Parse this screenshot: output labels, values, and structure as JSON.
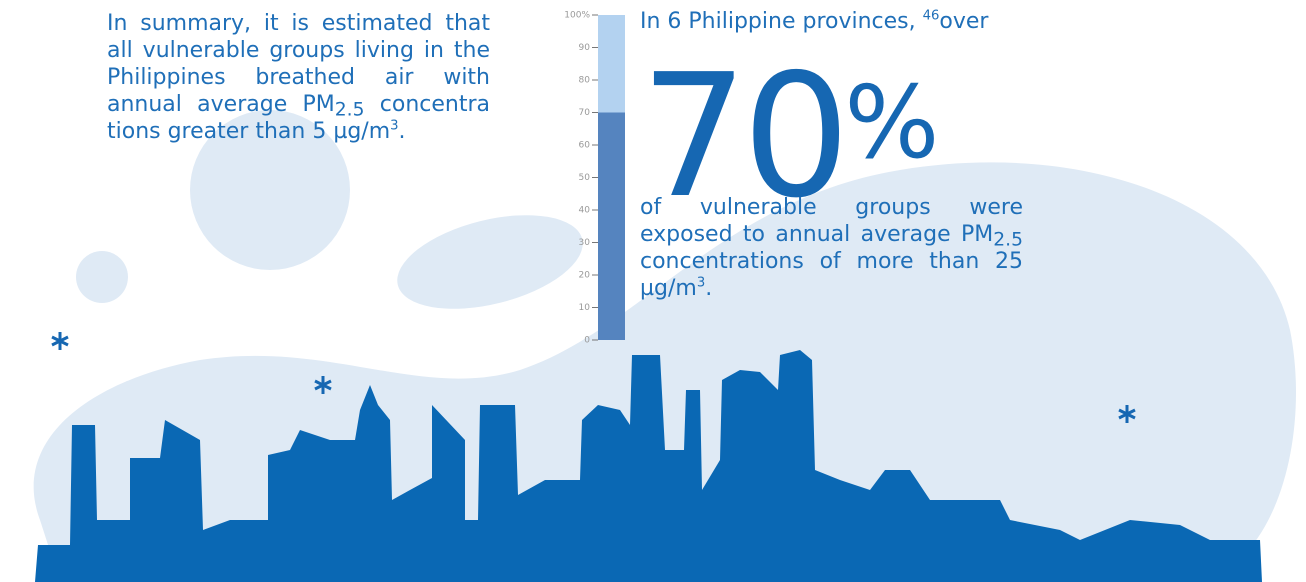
{
  "left_text": {
    "part1": "In summary, it is estimated that all vulnerable groups living in the Philippines breathed air with annual average PM",
    "sub": "2.5",
    "part2": " concentra tions greater than 5 µg/m",
    "sup": "3",
    "end": "."
  },
  "right_text": {
    "intro": "In 6 Philippine provinces, ",
    "intro_sup": "46",
    "intro_end": "over",
    "big_unit": "%",
    "part1": "of vulnerable groups were exposed to annual average PM",
    "sub": "2.5",
    "part2": " concentrations of more than 25 µg/m",
    "sup": "3",
    "end": "."
  },
  "gauge": {
    "value": 70,
    "ylim": [
      0,
      100
    ],
    "yticks": [
      0,
      10,
      20,
      30,
      40,
      50,
      60,
      70,
      80,
      90,
      {
        "value": 100,
        "label": "100%"
      }
    ],
    "color": "#5584bf",
    "track_color": "#b3d2f0"
  }
}
